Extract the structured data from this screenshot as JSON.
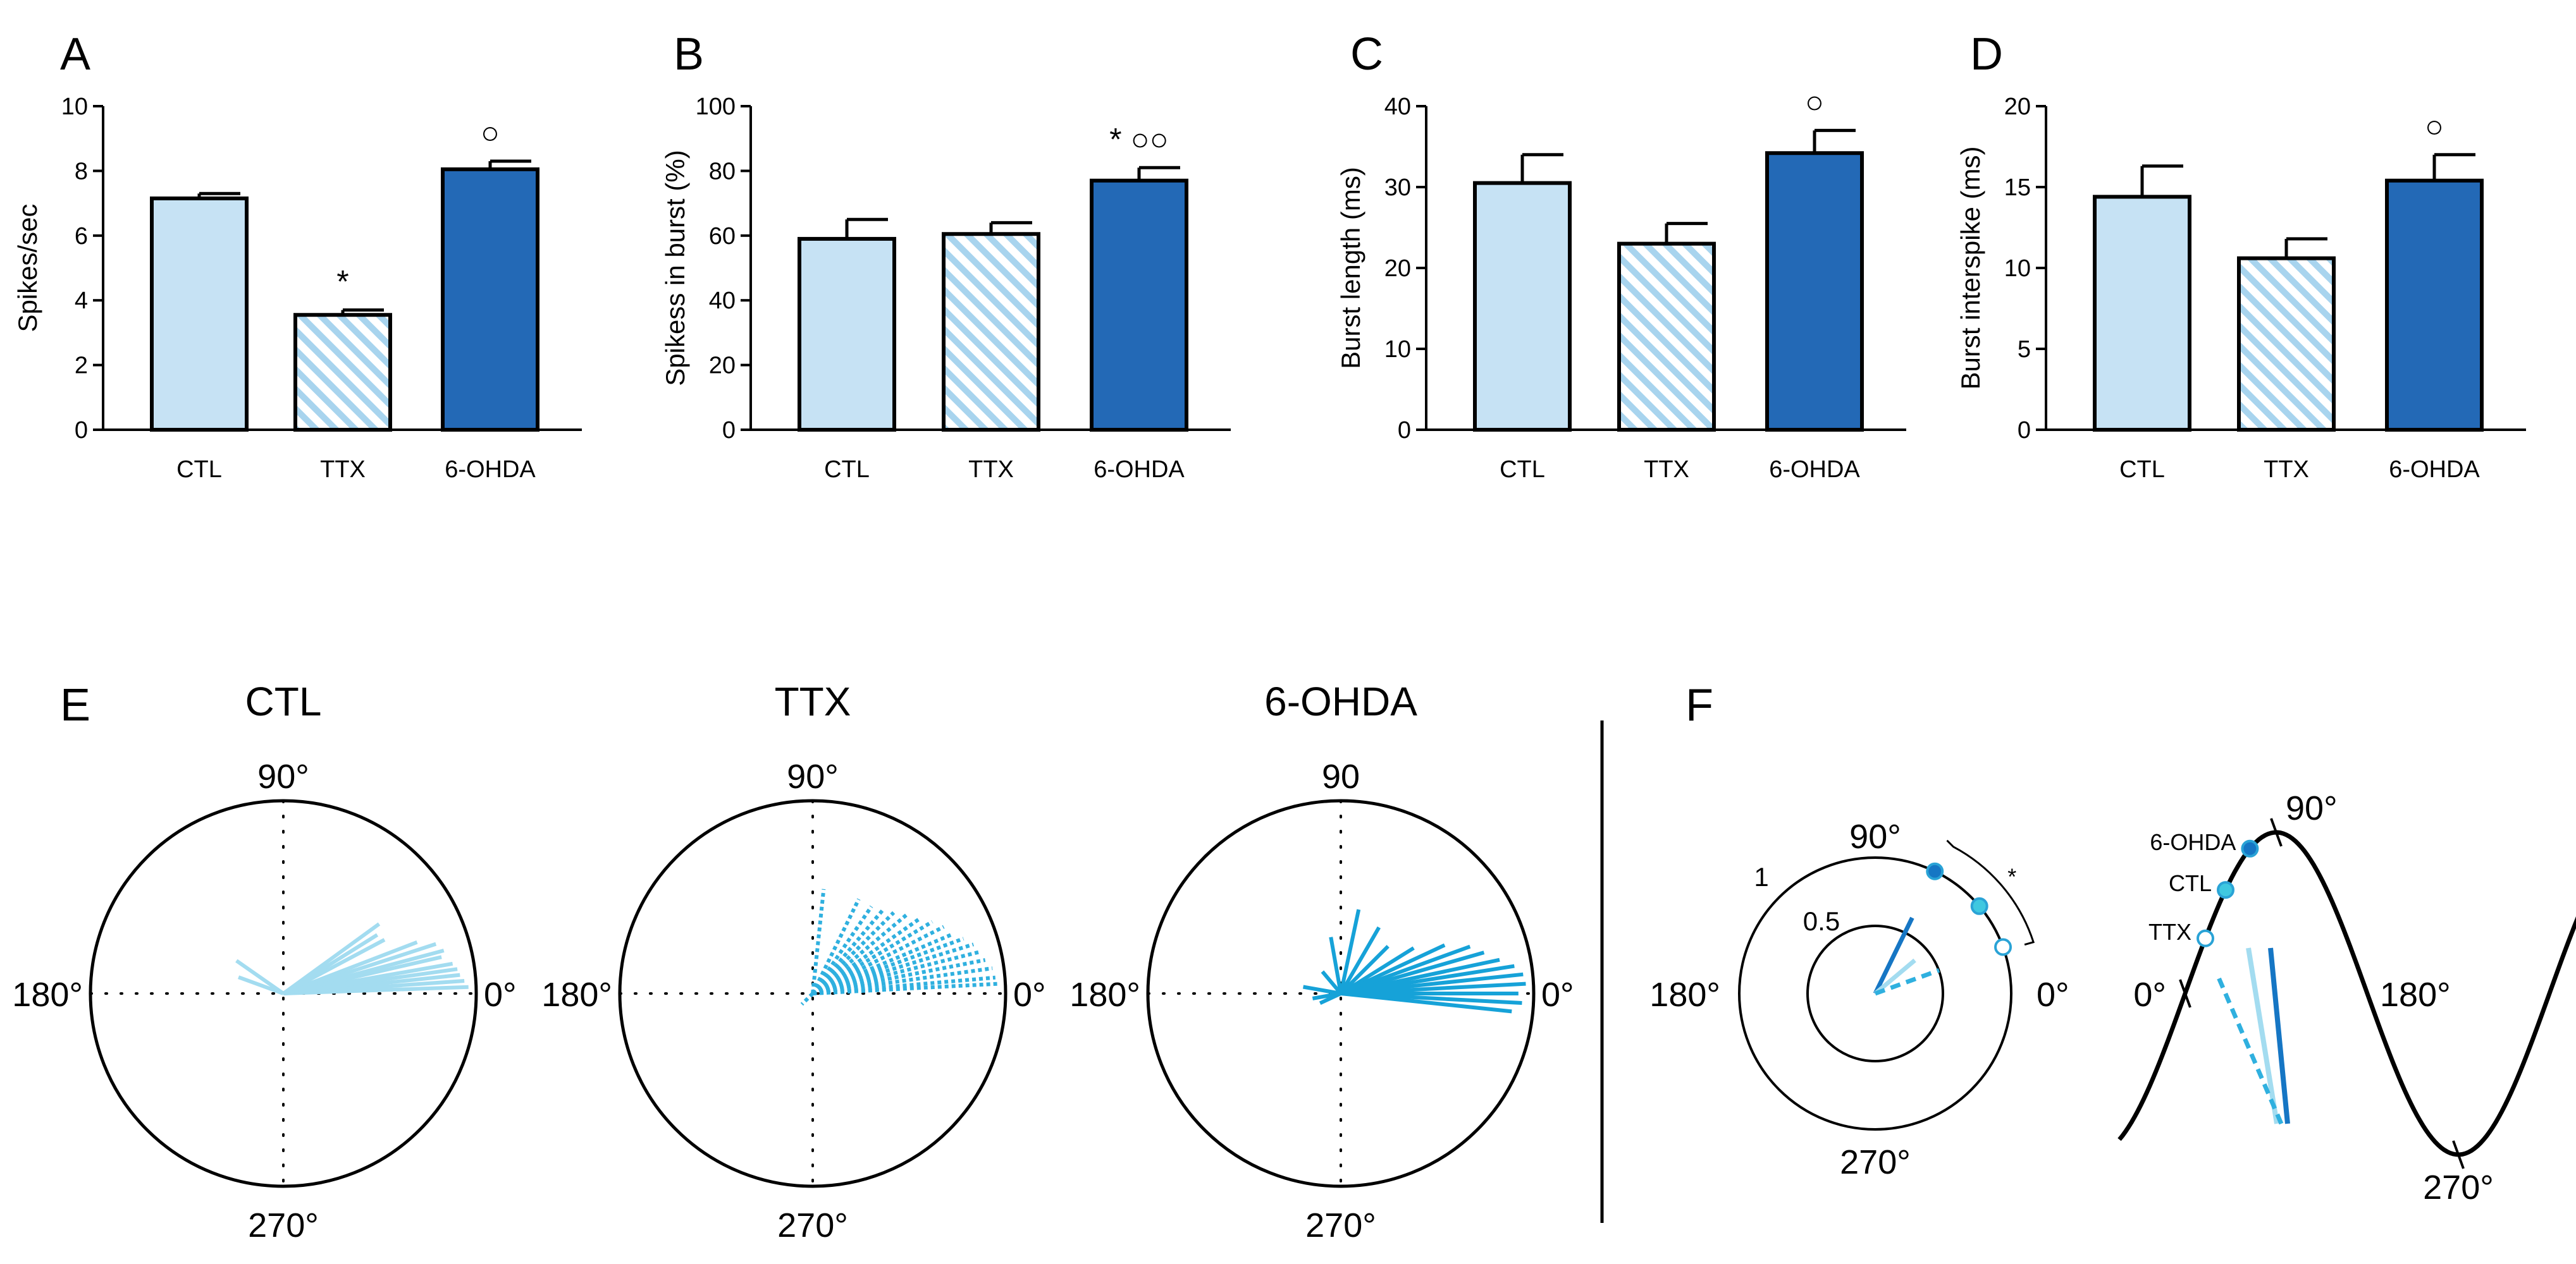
{
  "colors": {
    "ctl": "#c6e2f4",
    "ttx_stripe": "#a8d4ee",
    "ohda": "#2369b6",
    "polar_ctl": "#a3dcf0",
    "polar_ttx": "#2fb0df",
    "polar_ohda": "#16a2d8",
    "dot_ohda": "#1676c4",
    "dot_ctl": "#3fc8e0",
    "dot_ttx": "#2aa3d6",
    "ink": "#000000"
  },
  "chart_data": [
    {
      "panel": "A",
      "type": "bar",
      "ylabel": "Spikes/sec",
      "ylim": [
        0,
        10
      ],
      "yticks": [
        0,
        2,
        4,
        6,
        8,
        10
      ],
      "categories": [
        "CTL",
        "TTX",
        "6-OHDA"
      ],
      "values": [
        7.15,
        3.55,
        8.05
      ],
      "errors": [
        0.15,
        0.15,
        0.25
      ],
      "annotations": [
        "",
        "*",
        "○"
      ]
    },
    {
      "panel": "B",
      "type": "bar",
      "ylabel": "Spikess in burst (%)",
      "ylim": [
        0,
        100
      ],
      "yticks": [
        0,
        20,
        40,
        60,
        80,
        100
      ],
      "categories": [
        "CTL",
        "TTX",
        "6-OHDA"
      ],
      "values": [
        59,
        60.5,
        77
      ],
      "errors": [
        6,
        3.5,
        4
      ],
      "annotations": [
        "",
        "",
        "* ○○"
      ]
    },
    {
      "panel": "C",
      "type": "bar",
      "ylabel": "Burst length (ms)",
      "ylim": [
        0,
        40
      ],
      "yticks": [
        0,
        10,
        20,
        30,
        40
      ],
      "categories": [
        "CTL",
        "TTX",
        "6-OHDA"
      ],
      "values": [
        30.5,
        23,
        34.2
      ],
      "errors": [
        3.5,
        2.5,
        2.8
      ],
      "annotations": [
        "",
        "",
        "○"
      ]
    },
    {
      "panel": "D",
      "type": "bar",
      "ylabel": "Burst interspike (ms)",
      "ylim": [
        0,
        20
      ],
      "yticks": [
        0,
        5,
        10,
        15,
        20
      ],
      "categories": [
        "CTL",
        "TTX",
        "6-OHDA"
      ],
      "values": [
        14.4,
        10.6,
        15.4
      ],
      "errors": [
        1.9,
        1.2,
        1.6
      ],
      "annotations": [
        "",
        "",
        "○"
      ]
    },
    {
      "panel": "E",
      "type": "polar",
      "title": "CTL",
      "labels": {
        "top": "90°",
        "bottom": "270°",
        "left": "180°",
        "right": "0°"
      },
      "style": "solid",
      "vectors": [
        {
          "angle": 2,
          "r": 0.97
        },
        {
          "angle": 4,
          "r": 0.95
        },
        {
          "angle": 6,
          "r": 0.93
        },
        {
          "angle": 8,
          "r": 0.92
        },
        {
          "angle": 10,
          "r": 0.9
        },
        {
          "angle": 13,
          "r": 0.85
        },
        {
          "angle": 15,
          "r": 0.87
        },
        {
          "angle": 18,
          "r": 0.84
        },
        {
          "angle": 21,
          "r": 0.75
        },
        {
          "angle": 28,
          "r": 0.6
        },
        {
          "angle": 32,
          "r": 0.58
        },
        {
          "angle": 36,
          "r": 0.62
        },
        {
          "angle": 145,
          "r": 0.3
        },
        {
          "angle": 160,
          "r": 0.25
        }
      ]
    },
    {
      "panel": "E",
      "type": "polar",
      "title": "TTX",
      "labels": {
        "top": "90°",
        "bottom": "270°",
        "left": "180°",
        "right": "0°"
      },
      "style": "dotted",
      "vectors": [
        {
          "angle": 3,
          "r": 0.98
        },
        {
          "angle": 5,
          "r": 0.96
        },
        {
          "angle": 8,
          "r": 0.95
        },
        {
          "angle": 11,
          "r": 0.92
        },
        {
          "angle": 14,
          "r": 0.9
        },
        {
          "angle": 17,
          "r": 0.88
        },
        {
          "angle": 20,
          "r": 0.84
        },
        {
          "angle": 23,
          "r": 0.8
        },
        {
          "angle": 27,
          "r": 0.77
        },
        {
          "angle": 31,
          "r": 0.73
        },
        {
          "angle": 35,
          "r": 0.68
        },
        {
          "angle": 40,
          "r": 0.64
        },
        {
          "angle": 45,
          "r": 0.6
        },
        {
          "angle": 50,
          "r": 0.58
        },
        {
          "angle": 56,
          "r": 0.55
        },
        {
          "angle": 64,
          "r": 0.55
        },
        {
          "angle": 84,
          "r": 0.55
        },
        {
          "angle": 225,
          "r": 0.08
        }
      ]
    },
    {
      "panel": "E",
      "type": "polar",
      "title": "6-OHDA",
      "labels": {
        "top": "90",
        "bottom": "270°",
        "left": "180°",
        "right": "0°"
      },
      "style": "solid",
      "vectors": [
        {
          "angle": -6,
          "r": 0.9
        },
        {
          "angle": -3,
          "r": 0.95
        },
        {
          "angle": 0,
          "r": 0.93
        },
        {
          "angle": 3,
          "r": 0.97
        },
        {
          "angle": 6,
          "r": 0.96
        },
        {
          "angle": 9,
          "r": 0.92
        },
        {
          "angle": 12,
          "r": 0.85
        },
        {
          "angle": 16,
          "r": 0.78
        },
        {
          "angle": 20,
          "r": 0.72
        },
        {
          "angle": 25,
          "r": 0.6
        },
        {
          "angle": 32,
          "r": 0.45
        },
        {
          "angle": 45,
          "r": 0.35
        },
        {
          "angle": 60,
          "r": 0.4
        },
        {
          "angle": 78,
          "r": 0.45
        },
        {
          "angle": 100,
          "r": 0.3
        },
        {
          "angle": 130,
          "r": 0.15
        },
        {
          "angle": 170,
          "r": 0.2
        },
        {
          "angle": 190,
          "r": 0.15
        },
        {
          "angle": 205,
          "r": 0.12
        }
      ]
    },
    {
      "panel": "F",
      "type": "polar-summary",
      "labels": {
        "top": "90°",
        "bottom": "270°",
        "left": "180°",
        "right": "0°",
        "outer_r": "1",
        "inner_r": "0.5"
      },
      "significance": "*",
      "groups": [
        {
          "name": "6-OHDA",
          "angle": 64,
          "r": 0.62,
          "style": "solid"
        },
        {
          "name": "CTL",
          "angle": 40,
          "r": 0.38,
          "style": "solid"
        },
        {
          "name": "TTX",
          "angle": 20,
          "r": 0.5,
          "style": "dashed"
        }
      ]
    },
    {
      "panel": "F",
      "type": "sine-summary",
      "labels": {
        "p0": "0°",
        "p90": "90°",
        "p180": "180°",
        "p270": "270°"
      },
      "points": [
        {
          "name": "6-OHDA",
          "phase_deg": 64
        },
        {
          "name": "CTL",
          "phase_deg": 40
        },
        {
          "name": "TTX",
          "phase_deg": 20
        }
      ]
    }
  ],
  "panel_letters": {
    "a": "A",
    "b": "B",
    "c": "C",
    "d": "D",
    "e": "E",
    "f": "F"
  }
}
